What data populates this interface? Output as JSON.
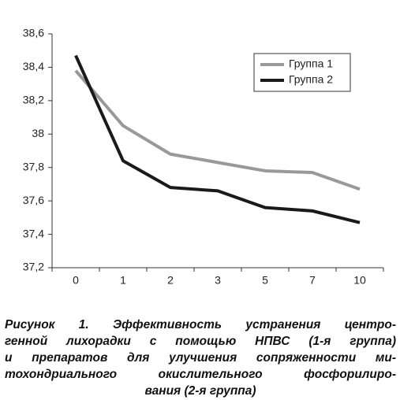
{
  "chart_data": {
    "type": "line",
    "categories": [
      "0",
      "1",
      "2",
      "3",
      "5",
      "7",
      "10"
    ],
    "series": [
      {
        "name": "Группа 1",
        "color": "#999999",
        "values": [
          38.38,
          38.05,
          37.88,
          37.83,
          37.78,
          37.77,
          37.67
        ]
      },
      {
        "name": "Группа 2",
        "color": "#1a1a1a",
        "values": [
          38.47,
          37.84,
          37.68,
          37.66,
          37.56,
          37.54,
          37.47
        ]
      }
    ],
    "ylim": [
      37.2,
      38.6
    ],
    "yticks": [
      {
        "value": 37.2,
        "label": "37,2"
      },
      {
        "value": 37.4,
        "label": "37,4"
      },
      {
        "value": 37.6,
        "label": "37,6"
      },
      {
        "value": 37.8,
        "label": "37,8"
      },
      38,
      {
        "value": 38.2,
        "label": "38,2"
      },
      {
        "value": 38.4,
        "label": "38,4"
      },
      {
        "value": 38.6,
        "label": "38,6"
      }
    ],
    "grid": false,
    "legend": "upper right",
    "caption": [
      "Рисунок 1. Эффективность устранения центро-",
      "генной лихорадки с помощью НПВС (1-я группа)",
      "и препаратов для улучшения сопряженности ми-",
      "тохондриального окислительного фосфорилиро-",
      "вания (2-я группа)"
    ]
  }
}
